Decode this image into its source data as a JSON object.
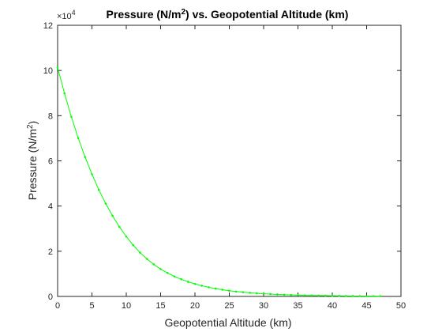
{
  "chart_data": {
    "type": "line",
    "title_main": "Pressure (N/m",
    "title_sup": "2",
    "title_rest": ") vs. Geopotential Altitude (km)",
    "xlabel": "Geopotential Altitude (km)",
    "ylabel_main": "Pressure (N/m",
    "ylabel_sup": "2",
    "ylabel_rest": ")",
    "y_exponent_prefix": "×10",
    "y_exponent": "4",
    "xlim": [
      0,
      50
    ],
    "ylim": [
      0,
      12
    ],
    "x_ticks": [
      "0",
      "5",
      "10",
      "15",
      "20",
      "25",
      "30",
      "35",
      "40",
      "45",
      "50"
    ],
    "y_ticks": [
      "0",
      "2",
      "4",
      "6",
      "8",
      "10",
      "12"
    ],
    "grid": false,
    "line_color": "#00ff00",
    "axis_color": "#262626",
    "series": [
      {
        "x": [
          0,
          1,
          2,
          3,
          4,
          5,
          6,
          7,
          8,
          9,
          10,
          11,
          12,
          13,
          14,
          15,
          16,
          17,
          18,
          19,
          20,
          21,
          22,
          23,
          24,
          25,
          26,
          27,
          28,
          29,
          30,
          31,
          32,
          33,
          34,
          35,
          36,
          37,
          38,
          39,
          40,
          41,
          42,
          43,
          44,
          45,
          46,
          47
        ],
        "y": [
          10.13,
          8.99,
          7.95,
          7.01,
          6.17,
          5.41,
          4.72,
          4.11,
          3.57,
          3.08,
          2.65,
          2.27,
          1.94,
          1.66,
          1.42,
          1.21,
          1.04,
          0.888,
          0.759,
          0.648,
          0.554,
          0.474,
          0.405,
          0.347,
          0.297,
          0.255,
          0.219,
          0.188,
          0.162,
          0.139,
          0.12,
          0.103,
          0.089,
          0.077,
          0.066,
          0.058,
          0.05,
          0.043,
          0.038,
          0.033,
          0.029,
          0.025,
          0.022,
          0.019,
          0.017,
          0.015,
          0.013,
          0.011
        ]
      }
    ]
  }
}
